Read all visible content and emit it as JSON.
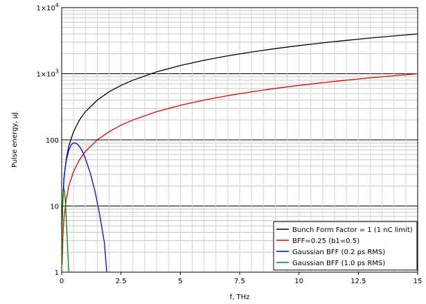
{
  "chart_data": {
    "type": "line",
    "title": "",
    "xlabel": "f, THz",
    "ylabel": "Pulse energy, µJ",
    "xlim": [
      0,
      15
    ],
    "ylim": [
      1,
      10000
    ],
    "yscale": "log",
    "grid": true,
    "legend_position": "bottom-right",
    "x_ticks": [
      {
        "value": 0,
        "label": "0"
      },
      {
        "value": 2.5,
        "label": "2.5"
      },
      {
        "value": 5,
        "label": "5"
      },
      {
        "value": 7.5,
        "label": "7.5"
      },
      {
        "value": 10,
        "label": "10"
      },
      {
        "value": 12.5,
        "label": "12.5"
      },
      {
        "value": 15,
        "label": "15"
      }
    ],
    "y_ticks": [
      {
        "value": 1,
        "label": "1",
        "sup": ""
      },
      {
        "value": 10,
        "label": "10",
        "sup": ""
      },
      {
        "value": 100,
        "label": "100",
        "sup": ""
      },
      {
        "value": 1000,
        "label": "1×10",
        "sup": "3"
      },
      {
        "value": 10000,
        "label": "1×10",
        "sup": "4"
      }
    ],
    "series": [
      {
        "name": "Bunch Form Factor = 1 (1 nC limit)",
        "color": "#000000",
        "x": [
          0.02,
          0.05,
          0.1,
          0.2,
          0.3,
          0.5,
          0.75,
          1,
          1.5,
          2,
          2.5,
          3,
          4,
          5,
          6,
          7,
          8,
          9,
          10,
          11,
          12,
          13,
          14,
          15
        ],
        "y": [
          5,
          13,
          27,
          53,
          80,
          133,
          200,
          267,
          400,
          533,
          667,
          800,
          1067,
          1333,
          1600,
          1867,
          2133,
          2400,
          2667,
          2933,
          3200,
          3467,
          3733,
          4000
        ]
      },
      {
        "name": "BFF=0.25 (b1=0.5)",
        "color": "#e00000",
        "x": [
          0.02,
          0.05,
          0.1,
          0.2,
          0.3,
          0.5,
          0.75,
          1,
          1.5,
          2,
          2.5,
          3,
          4,
          5,
          6,
          7,
          8,
          9,
          10,
          11,
          12,
          13,
          14,
          15
        ],
        "y": [
          1.3,
          3.3,
          6.7,
          13,
          20,
          33,
          50,
          67,
          100,
          133,
          167,
          200,
          267,
          333,
          400,
          467,
          533,
          600,
          667,
          733,
          800,
          867,
          933,
          1000
        ]
      },
      {
        "name": "Gaussian BFF (0.2 ps RMS)",
        "color": "#0000ff",
        "x": [
          0.05,
          0.1,
          0.15,
          0.2,
          0.3,
          0.4,
          0.5,
          0.6,
          0.7,
          0.8,
          0.9,
          1.0,
          1.2,
          1.4,
          1.6,
          1.8,
          1.9
        ],
        "y": [
          13,
          26,
          38,
          50,
          70,
          84,
          90,
          89,
          84,
          75,
          64,
          52,
          32,
          17,
          7.5,
          2.8,
          1.0
        ]
      },
      {
        "name": "Gaussian BFF (1.0 ps RMS)",
        "color": "#008000",
        "x": [
          0.005,
          0.01,
          0.02,
          0.04,
          0.06,
          0.08,
          0.1,
          0.12,
          0.14,
          0.16,
          0.2,
          0.25,
          0.3
        ],
        "y": [
          1.3,
          2.6,
          5.1,
          9.8,
          14,
          17,
          18,
          17,
          14,
          11,
          6,
          2.3,
          1.0
        ]
      }
    ]
  }
}
